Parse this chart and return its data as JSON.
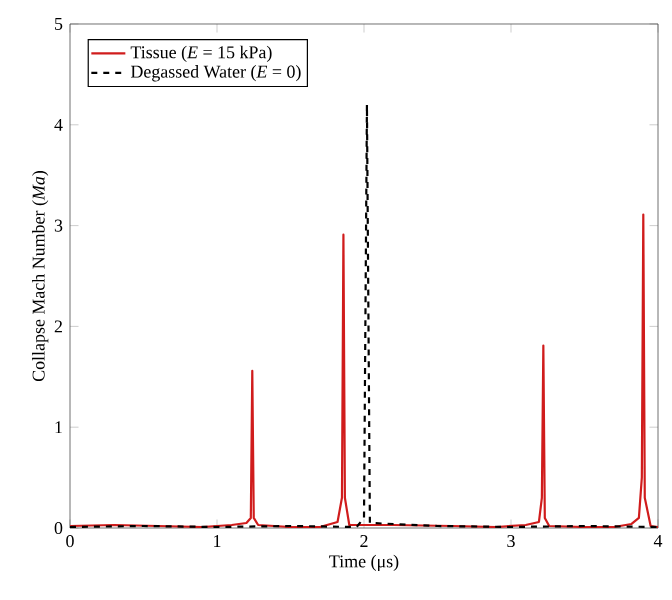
{
  "chart_data": {
    "type": "line",
    "xlabel": "Time (μs)",
    "ylabel": "Collapse Mach Number (*Ma*)",
    "xlim": [
      0,
      4
    ],
    "ylim": [
      0,
      5
    ],
    "xticks": [
      0,
      1,
      2,
      3,
      4
    ],
    "yticks": [
      0,
      1,
      2,
      3,
      4,
      5
    ],
    "grid": false,
    "legend": "top left",
    "marker": "none",
    "series": [
      {
        "name": "Tissue (*E* = 15 kPa)",
        "color": "#d01c1c",
        "line_style": "solid",
        "x": [
          0,
          0.3,
          0.6,
          0.9,
          1.1,
          1.2,
          1.23,
          1.24,
          1.25,
          1.28,
          1.5,
          1.7,
          1.82,
          1.85,
          1.86,
          1.87,
          1.9,
          2.2,
          2.6,
          2.9,
          3.1,
          3.19,
          3.21,
          3.22,
          3.23,
          3.26,
          3.5,
          3.7,
          3.82,
          3.87,
          3.89,
          3.9,
          3.91,
          3.95,
          4
        ],
        "values": [
          0.02,
          0.03,
          0.02,
          0.01,
          0.03,
          0.05,
          0.1,
          1.56,
          0.1,
          0.03,
          0.01,
          0.01,
          0.06,
          0.3,
          2.91,
          0.3,
          0.03,
          0.03,
          0.02,
          0.01,
          0.03,
          0.06,
          0.3,
          1.81,
          0.1,
          0.02,
          0.01,
          0.01,
          0.04,
          0.1,
          0.5,
          3.11,
          0.3,
          0.02,
          0.01
        ]
      },
      {
        "name": "Degassed Water (*E* = 0)",
        "color": "#000000",
        "line_style": "dashed",
        "x": [
          0,
          0.5,
          1,
          1.5,
          1.95,
          2.0,
          2.02,
          2.04,
          2.5,
          3,
          3.5,
          4
        ],
        "values": [
          0.01,
          0.02,
          0.01,
          0.02,
          0.01,
          0.1,
          4.2,
          0.05,
          0.02,
          0.01,
          0.02,
          0.01
        ]
      }
    ]
  }
}
